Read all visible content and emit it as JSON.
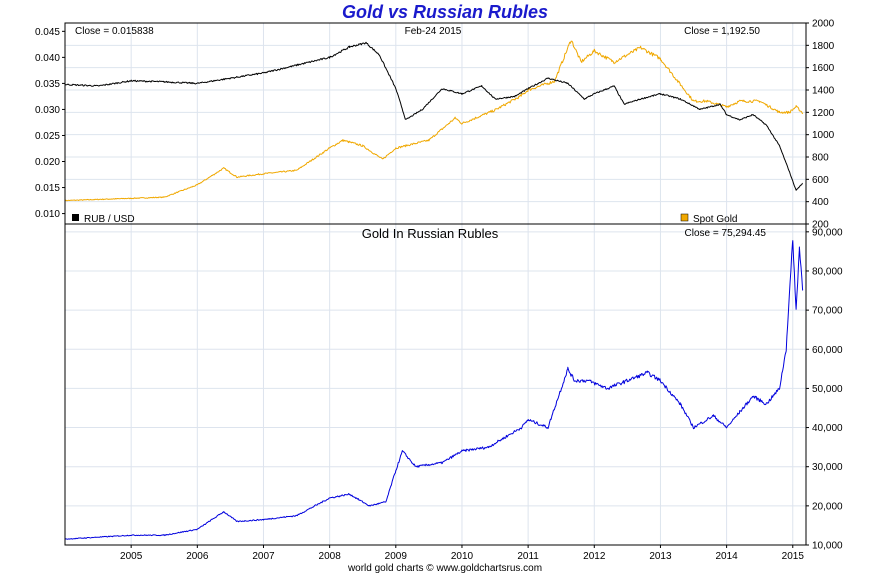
{
  "title": "Gold vs Russian Rubles",
  "footer": "world gold charts © www.goldchartsrus.com",
  "colors": {
    "rub_usd": "#000000",
    "spot_gold": "#f0a800",
    "gold_in_rubles": "#0000dd",
    "grid": "#dde4ee",
    "title": "#1a1acc"
  },
  "chart_data": [
    {
      "type": "line",
      "date_label": "Feb-24  2015",
      "grid": true,
      "x_ticks": [
        "2005",
        "2006",
        "2007",
        "2008",
        "2009",
        "2010",
        "2011",
        "2012",
        "2013",
        "2014",
        "2015"
      ],
      "xlim": [
        2004.0,
        2015.2
      ],
      "y_left": {
        "ylim": [
          0.008,
          0.0466
        ],
        "ticks": [
          "0.010",
          "0.015",
          "0.020",
          "0.025",
          "0.030",
          "0.035",
          "0.040",
          "0.045"
        ]
      },
      "y_right": {
        "ylim": [
          200,
          2000
        ],
        "ticks": [
          "200",
          "400",
          "600",
          "800",
          "1000",
          "1200",
          "1400",
          "1600",
          "1800",
          "2000"
        ]
      },
      "series": [
        {
          "name": "RUB / USD",
          "axis": "left",
          "close_label": "Close = 0.015838",
          "x": [
            2004.0,
            2004.5,
            2005.0,
            2005.5,
            2006.0,
            2006.5,
            2007.0,
            2007.5,
            2008.0,
            2008.3,
            2008.55,
            2008.75,
            2009.0,
            2009.15,
            2009.4,
            2009.7,
            2010.0,
            2010.3,
            2010.5,
            2010.8,
            2011.0,
            2011.3,
            2011.6,
            2011.85,
            2012.0,
            2012.3,
            2012.45,
            2012.7,
            2013.0,
            2013.3,
            2013.6,
            2013.9,
            2014.0,
            2014.2,
            2014.4,
            2014.6,
            2014.8,
            2014.95,
            2015.05,
            2015.15
          ],
          "y": [
            0.0348,
            0.0345,
            0.0355,
            0.0353,
            0.035,
            0.036,
            0.037,
            0.0385,
            0.04,
            0.042,
            0.0428,
            0.0405,
            0.034,
            0.028,
            0.03,
            0.034,
            0.033,
            0.0345,
            0.032,
            0.0325,
            0.034,
            0.036,
            0.035,
            0.032,
            0.033,
            0.0345,
            0.031,
            0.032,
            0.033,
            0.032,
            0.03,
            0.031,
            0.029,
            0.028,
            0.029,
            0.027,
            0.023,
            0.018,
            0.0145,
            0.0158
          ]
        },
        {
          "name": "Spot Gold",
          "axis": "right",
          "close_label": "Close = 1,192.50",
          "x": [
            2004.0,
            2004.5,
            2005.0,
            2005.5,
            2006.0,
            2006.4,
            2006.6,
            2007.0,
            2007.5,
            2008.0,
            2008.2,
            2008.5,
            2008.8,
            2009.0,
            2009.5,
            2009.9,
            2010.0,
            2010.5,
            2010.9,
            2011.0,
            2011.4,
            2011.65,
            2011.8,
            2012.0,
            2012.3,
            2012.7,
            2013.0,
            2013.3,
            2013.5,
            2013.7,
            2014.0,
            2014.2,
            2014.5,
            2014.8,
            2014.95,
            2015.05,
            2015.15
          ],
          "y": [
            410,
            420,
            430,
            440,
            550,
            700,
            620,
            650,
            680,
            880,
            950,
            900,
            780,
            880,
            950,
            1150,
            1100,
            1220,
            1350,
            1400,
            1480,
            1850,
            1650,
            1750,
            1650,
            1780,
            1680,
            1450,
            1300,
            1300,
            1250,
            1300,
            1300,
            1200,
            1200,
            1250,
            1195
          ]
        }
      ],
      "legend": [
        "RUB / USD",
        "Spot Gold"
      ]
    },
    {
      "type": "line",
      "title": "Gold In Russian Rubles",
      "grid": true,
      "x_ticks": [
        "2005",
        "2006",
        "2007",
        "2008",
        "2009",
        "2010",
        "2011",
        "2012",
        "2013",
        "2014",
        "2015"
      ],
      "xlim": [
        2004.0,
        2015.2
      ],
      "y_right": {
        "ylim": [
          10000,
          92000
        ],
        "ticks": [
          "10,000",
          "20,000",
          "30,000",
          "40,000",
          "50,000",
          "60,000",
          "70,000",
          "80,000",
          "90,000"
        ]
      },
      "series": [
        {
          "name": "Gold In Russian Rubles",
          "axis": "right",
          "close_label": "Close = 75,294.45",
          "x": [
            2004.0,
            2004.5,
            2005.0,
            2005.5,
            2006.0,
            2006.4,
            2006.6,
            2007.0,
            2007.5,
            2008.0,
            2008.3,
            2008.6,
            2008.85,
            2009.0,
            2009.1,
            2009.3,
            2009.7,
            2010.0,
            2010.4,
            2010.6,
            2010.9,
            2011.0,
            2011.3,
            2011.6,
            2011.7,
            2011.9,
            2012.2,
            2012.5,
            2012.8,
            2013.0,
            2013.3,
            2013.5,
            2013.8,
            2014.0,
            2014.2,
            2014.4,
            2014.6,
            2014.8,
            2014.9,
            2015.0,
            2015.05,
            2015.1,
            2015.15
          ],
          "y": [
            11500,
            12000,
            12500,
            12500,
            14000,
            18500,
            16000,
            16500,
            17500,
            22000,
            23000,
            20000,
            21000,
            29000,
            34000,
            30000,
            31000,
            34000,
            35000,
            37000,
            40000,
            42000,
            40000,
            55000,
            52000,
            52000,
            50000,
            52000,
            54000,
            52000,
            46000,
            40000,
            43000,
            40000,
            44000,
            48000,
            46000,
            50000,
            60000,
            88000,
            70000,
            86000,
            75300
          ]
        }
      ]
    }
  ]
}
